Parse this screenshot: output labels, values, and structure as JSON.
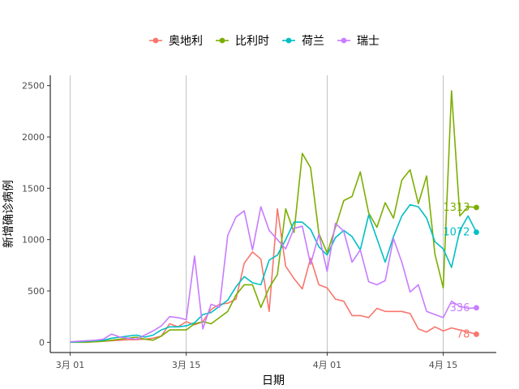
{
  "chart_data": {
    "type": "line",
    "xlabel": "日期",
    "ylabel": "新增确诊病例",
    "x_start": "2020-03-01",
    "x_end": "2020-04-19",
    "x_ticks": [
      {
        "date": "2020-03-01",
        "label": "3月 01"
      },
      {
        "date": "2020-03-15",
        "label": "3月 15"
      },
      {
        "date": "2020-04-01",
        "label": "4月 01"
      },
      {
        "date": "2020-04-15",
        "label": "4月 15"
      }
    ],
    "ylim": [
      -100,
      2600
    ],
    "y_ticks": [
      0,
      500,
      1000,
      1500,
      2000,
      2500
    ],
    "grid": "vertical-major-only",
    "legend_position": "top",
    "series": [
      {
        "name": "奥地利",
        "color": "#F8766D",
        "end_label": "78",
        "values": [
          0,
          5,
          5,
          5,
          10,
          15,
          20,
          25,
          25,
          30,
          40,
          60,
          180,
          150,
          200,
          170,
          200,
          320,
          370,
          380,
          420,
          770,
          880,
          810,
          300,
          1300,
          740,
          620,
          520,
          820,
          560,
          530,
          420,
          400,
          260,
          260,
          240,
          330,
          300,
          300,
          300,
          280,
          130,
          100,
          150,
          110,
          140,
          120,
          100,
          78
        ]
      },
      {
        "name": "比利时",
        "color": "#7CAE00",
        "end_label": "1313",
        "values": [
          0,
          0,
          0,
          5,
          10,
          20,
          30,
          40,
          50,
          30,
          20,
          60,
          120,
          120,
          120,
          180,
          200,
          180,
          240,
          300,
          460,
          560,
          560,
          340,
          530,
          660,
          1300,
          1070,
          1840,
          1700,
          1060,
          870,
          1120,
          1380,
          1420,
          1660,
          1260,
          1120,
          1360,
          1210,
          1580,
          1680,
          1350,
          1620,
          860,
          530,
          2450,
          1230,
          1320,
          1313
        ]
      },
      {
        "name": "荷兰",
        "color": "#00BFC4",
        "end_label": "1072",
        "values": [
          0,
          5,
          10,
          15,
          20,
          40,
          50,
          60,
          70,
          50,
          70,
          120,
          150,
          150,
          160,
          190,
          270,
          290,
          350,
          410,
          540,
          640,
          580,
          560,
          800,
          850,
          1000,
          1170,
          1170,
          1100,
          930,
          850,
          1020,
          1090,
          1030,
          900,
          1240,
          1010,
          780,
          1030,
          1230,
          1340,
          1320,
          1210,
          980,
          910,
          730,
          1090,
          1230,
          1072
        ]
      },
      {
        "name": "瑞士",
        "color": "#C77CFF",
        "end_label": "336",
        "values": [
          5,
          10,
          15,
          20,
          30,
          80,
          50,
          40,
          30,
          70,
          110,
          160,
          250,
          240,
          220,
          840,
          130,
          370,
          340,
          1040,
          1220,
          1280,
          900,
          1320,
          1090,
          1000,
          910,
          1110,
          1130,
          760,
          1050,
          690,
          1160,
          1080,
          780,
          900,
          590,
          560,
          600,
          1010,
          780,
          490,
          560,
          300,
          270,
          240,
          400,
          350,
          330,
          336
        ]
      }
    ]
  }
}
